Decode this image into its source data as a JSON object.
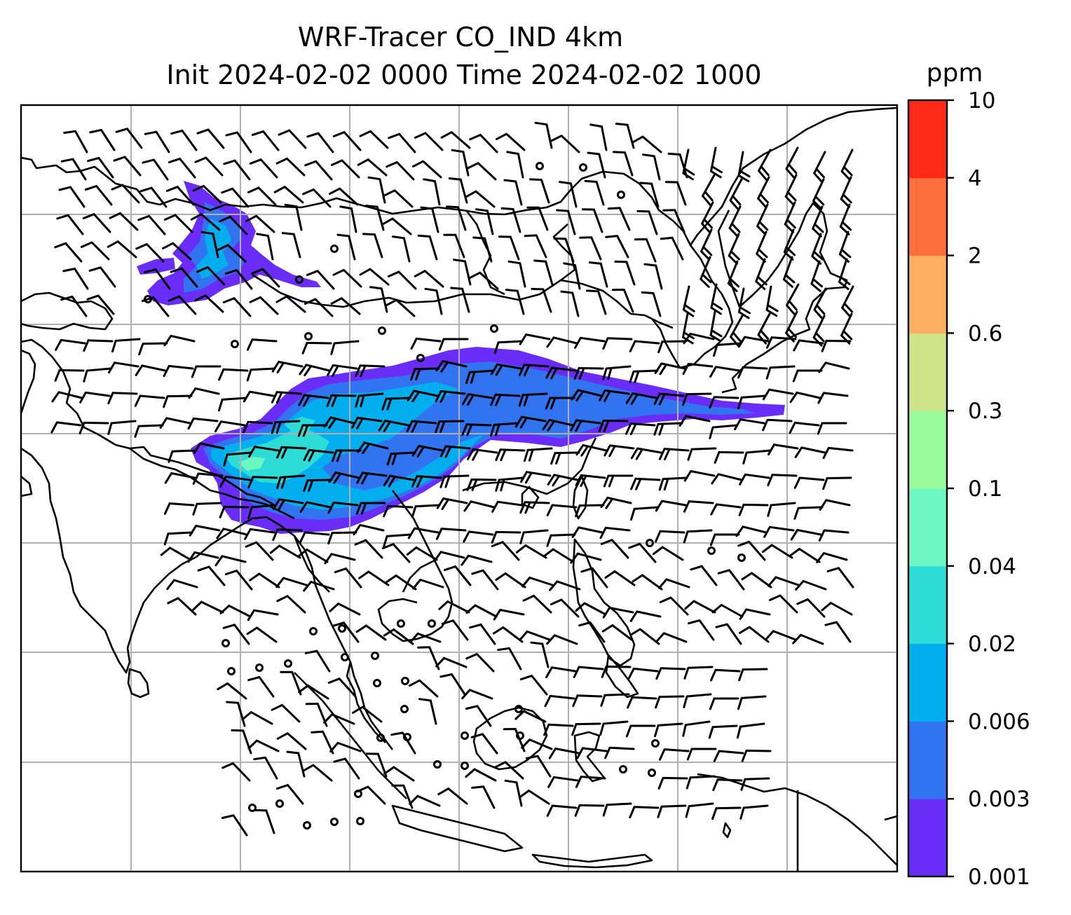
{
  "figure": {
    "title_line1": "WRF-Tracer CO_IND 4km",
    "title_line2": "Init 2024-02-02 0000 Time 2024-02-02 1000"
  },
  "colorbar": {
    "unit": "ppm",
    "levels": [
      "0.001",
      "0.003",
      "0.006",
      "0.02",
      "0.02",
      "0.04",
      "0.1",
      "0.3",
      "0.6",
      "2",
      "4",
      "10"
    ],
    "tick_labels": [
      "0.001",
      "0.003",
      "0.006",
      "0.02",
      "0.04",
      "0.1",
      "0.3",
      "0.6",
      "2",
      "4",
      "10"
    ],
    "colors": [
      "#6a2df7",
      "#3273f0",
      "#03aeee",
      "#2ddcd6",
      "#6cf8c0",
      "#9afb9a",
      "#cde488",
      "#fdae60",
      "#fe6f3e",
      "#fd2a18"
    ]
  },
  "map": {
    "grid": true,
    "gridline_color": "#b0b0b0",
    "coastline_color": "#000000",
    "barb_color": "#000000",
    "plume_colors": {
      "low": "#6a2df7",
      "mid": "#3273f0",
      "high": "#03aeee",
      "peak": "#2ddcd6"
    }
  }
}
